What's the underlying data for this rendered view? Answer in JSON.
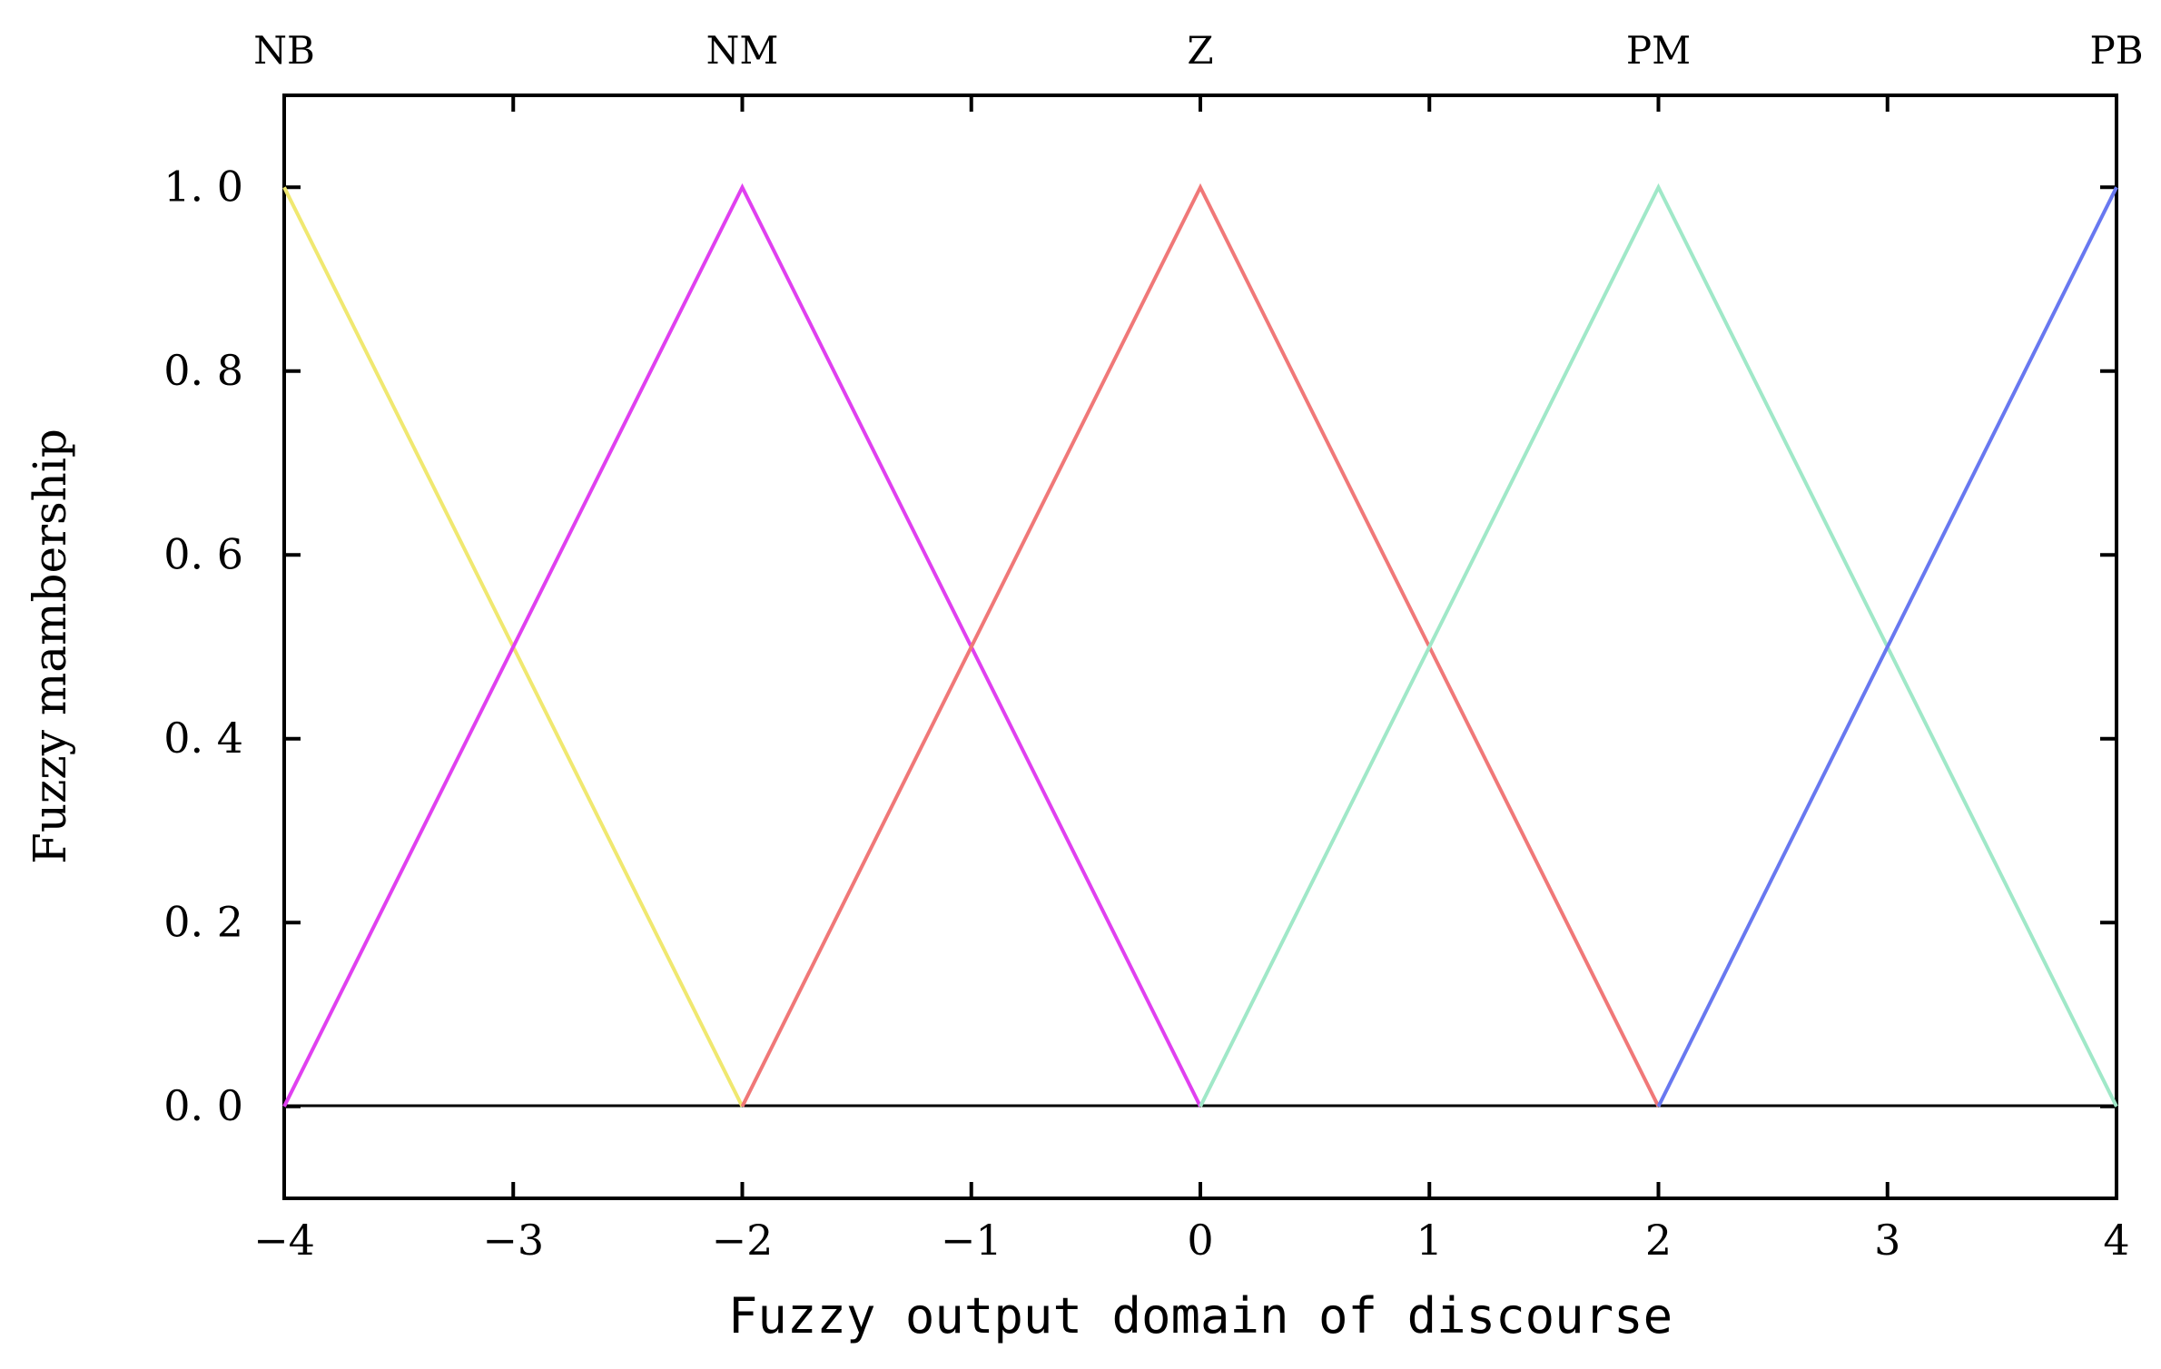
{
  "chart_data": {
    "type": "line",
    "xlabel": "Fuzzy output domain of discourse",
    "ylabel": "Fuzzy mambership",
    "xlim": [
      -4,
      4
    ],
    "ylim": [
      -0.1,
      1.1
    ],
    "x_ticks": [
      -4,
      -3,
      -2,
      -1,
      0,
      1,
      2,
      3,
      4
    ],
    "x_tick_labels": [
      "−4",
      "−3",
      "−2",
      "−1",
      "0",
      "1",
      "2",
      "3",
      "4"
    ],
    "y_ticks": [
      0.0,
      0.2,
      0.4,
      0.6,
      0.8,
      1.0
    ],
    "y_tick_labels": [
      "0. 0",
      "0. 2",
      "0. 4",
      "0. 6",
      "0. 8",
      "1. 0"
    ],
    "grid": false,
    "legend": "none",
    "series": [
      {
        "name": "NB",
        "color": "#f0e870",
        "x": [
          -4,
          -2
        ],
        "y": [
          1,
          0
        ]
      },
      {
        "name": "NM",
        "color": "#e040f0",
        "x": [
          -4,
          -2,
          0
        ],
        "y": [
          0,
          1,
          0
        ]
      },
      {
        "name": "Z",
        "color": "#f07878",
        "x": [
          -2,
          0,
          2
        ],
        "y": [
          0,
          1,
          0
        ]
      },
      {
        "name": "PM",
        "color": "#a0e8c8",
        "x": [
          0,
          2,
          4
        ],
        "y": [
          0,
          1,
          0
        ]
      },
      {
        "name": "PB",
        "color": "#6878f0",
        "x": [
          2,
          4
        ],
        "y": [
          0,
          1
        ]
      }
    ],
    "set_labels": [
      {
        "text": "NB",
        "x": -4
      },
      {
        "text": "NM",
        "x": -2
      },
      {
        "text": "Z",
        "x": 0
      },
      {
        "text": "PM",
        "x": 2
      },
      {
        "text": "PB",
        "x": 4
      }
    ]
  }
}
